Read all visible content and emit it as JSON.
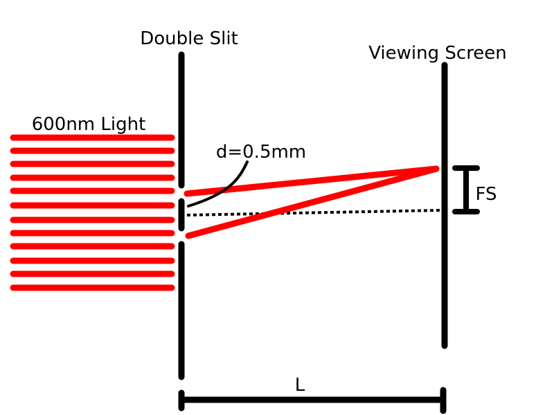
{
  "labels": {
    "slit": "Double Slit",
    "screen": "Viewing Screen",
    "light": "600nm Light",
    "spacing": "d=0.5mm",
    "fringe": "FS",
    "distance": "L"
  },
  "colors": {
    "light": "#ff0000",
    "line": "#000000",
    "background": "#ffffff"
  }
}
